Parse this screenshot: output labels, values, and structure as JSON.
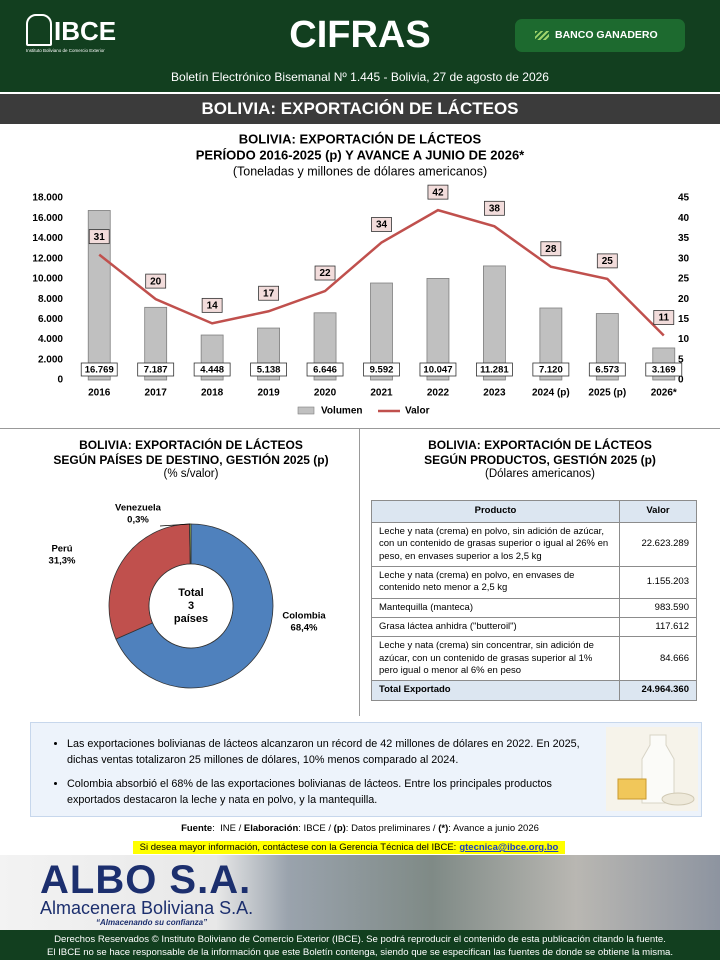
{
  "header": {
    "logo": "IBCE",
    "logo_caption": "Instituto Boliviano de Comercio Exterior",
    "title": "CIFRAS",
    "sponsor": "BANCO GANADERO",
    "bulletin": "Boletín Electrónico Bisemanal Nº 1.445 - Bolivia, 27 de agosto de 2026",
    "banner": "BOLIVIA: EXPORTACIÓN DE LÁCTEOS"
  },
  "chart_data": [
    {
      "type": "combo",
      "title": "BOLIVIA: EXPORTACIÓN DE LÁCTEOS",
      "subtitle": "PERÍODO 2016-2025 (p) Y AVANCE A JUNIO DE 2026*",
      "unit": "(Toneladas y millones de dólares americanos)",
      "categories": [
        "2016",
        "2017",
        "2018",
        "2019",
        "2020",
        "2021",
        "2022",
        "2023",
        "2024 (p)",
        "2025 (p)",
        "2026*"
      ],
      "series": [
        {
          "name": "Volumen",
          "type": "bar",
          "color": "#c0c0c0",
          "values": [
            16769,
            7187,
            4448,
            5138,
            6646,
            9592,
            10047,
            11281,
            7120,
            6573,
            3169
          ],
          "value_labels": [
            "16.769",
            "7.187",
            "4.448",
            "5.138",
            "6.646",
            "9.592",
            "10.047",
            "11.281",
            "7.120",
            "6.573",
            "3.169"
          ]
        },
        {
          "name": "Valor",
          "type": "line",
          "color": "#c0504d",
          "axis": "y2",
          "values": [
            31,
            20,
            14,
            17,
            22,
            34,
            42,
            38,
            28,
            25,
            11
          ]
        }
      ],
      "ylim": [
        0,
        18000
      ],
      "yticks": [
        0,
        {
          "value": 2000,
          "label": "2.000"
        },
        {
          "value": 4000,
          "label": "4.000"
        },
        {
          "value": 6000,
          "label": "6.000"
        },
        {
          "value": 8000,
          "label": "8.000"
        },
        {
          "value": 10000,
          "label": "10.000"
        },
        {
          "value": 12000,
          "label": "12.000"
        },
        {
          "value": 14000,
          "label": "14.000"
        },
        {
          "value": 16000,
          "label": "16.000"
        },
        {
          "value": 18000,
          "label": "18.000"
        }
      ],
      "y2lim": [
        0,
        45
      ],
      "y2ticks": [
        0,
        5,
        10,
        15,
        20,
        25,
        30,
        35,
        40,
        45
      ],
      "legend": "bottom"
    },
    {
      "type": "donut",
      "title": "BOLIVIA: EXPORTACIÓN DE LÁCTEOS",
      "subtitle": "SEGÚN PAÍSES DE DESTINO, GESTIÓN 2025 (p)",
      "unit": "(% s/valor)",
      "categories": [
        "Colombia",
        "Perú",
        "Venezuela"
      ],
      "values": [
        68.4,
        31.3,
        0.3
      ],
      "value_labels": [
        "68,4%",
        "31,3%",
        "0,3%"
      ],
      "colors": [
        "#4f81bd",
        "#c0504d",
        "#9bbb59"
      ],
      "center_label": [
        "Total",
        "3",
        "países"
      ]
    }
  ],
  "table": {
    "title": "BOLIVIA: EXPORTACIÓN DE LÁCTEOS",
    "subtitle": "SEGÚN PRODUCTOS, GESTIÓN 2025 (p)",
    "unit": "(Dólares americanos)",
    "columns": [
      "Producto",
      "Valor"
    ],
    "rows": [
      [
        "Leche y nata (crema) en polvo, sin adición de azúcar, con un contenido de grasas superior o igual al 26% en peso, en envases superior a los 2,5 kg",
        "22.623.289"
      ],
      [
        "Leche y nata (crema) en polvo, en envases de contenido neto menor a 2,5 kg",
        "1.155.203"
      ],
      [
        "Mantequilla (manteca)",
        "983.590"
      ],
      [
        "Grasa láctea anhidra (\"butteroil\")",
        "117.612"
      ],
      [
        "Leche y nata (crema) sin concentrar, sin adición de azúcar, con un contenido de grasas superior al 1% pero igual o menor al 6% en peso",
        "84.666"
      ]
    ],
    "total": [
      "Total Exportado",
      "24.964.360"
    ]
  },
  "bullets": [
    "Las exportaciones bolivianas de lácteos alcanzaron un récord de 42 millones de dólares en 2022. En 2025, dichas ventas totalizaron 25 millones de dólares, 10% menos comparado al 2024.",
    "Colombia absorbió el 68% de las exportaciones bolivianas de lácteos. Entre los principales productos exportados destacaron la leche y nata en polvo, y la mantequilla."
  ],
  "source": [
    {
      "text": "Fuente",
      "bold": true
    },
    {
      "text": ":  INE / "
    },
    {
      "text": "Elaboración",
      "bold": true
    },
    {
      "text": ": IBCE / "
    },
    {
      "text": "(p)",
      "bold": true
    },
    {
      "text": ": Datos preliminares / "
    },
    {
      "text": "(*)",
      "bold": true
    },
    {
      "text": ": Avance a junio 2026"
    }
  ],
  "contact": {
    "text": "Si desea mayor información, contáctese con la Gerencia Técnica del IBCE:",
    "email": "gtecnica@ibce.org.bo"
  },
  "ad": {
    "brand": "ALBO S.A.",
    "name": "Almacenera Boliviana S.A.",
    "slogan": "“Almacenando su confianza”"
  },
  "footer": [
    "Derechos Reservados © Instituto Boliviano de Comercio Exterior (IBCE). Se podrá reproducir el contenido de esta publicación citando la fuente.",
    "El IBCE no se hace responsable de la información que este Boletín contenga, siendo que se especifican las fuentes de donde se obtiene la misma."
  ]
}
